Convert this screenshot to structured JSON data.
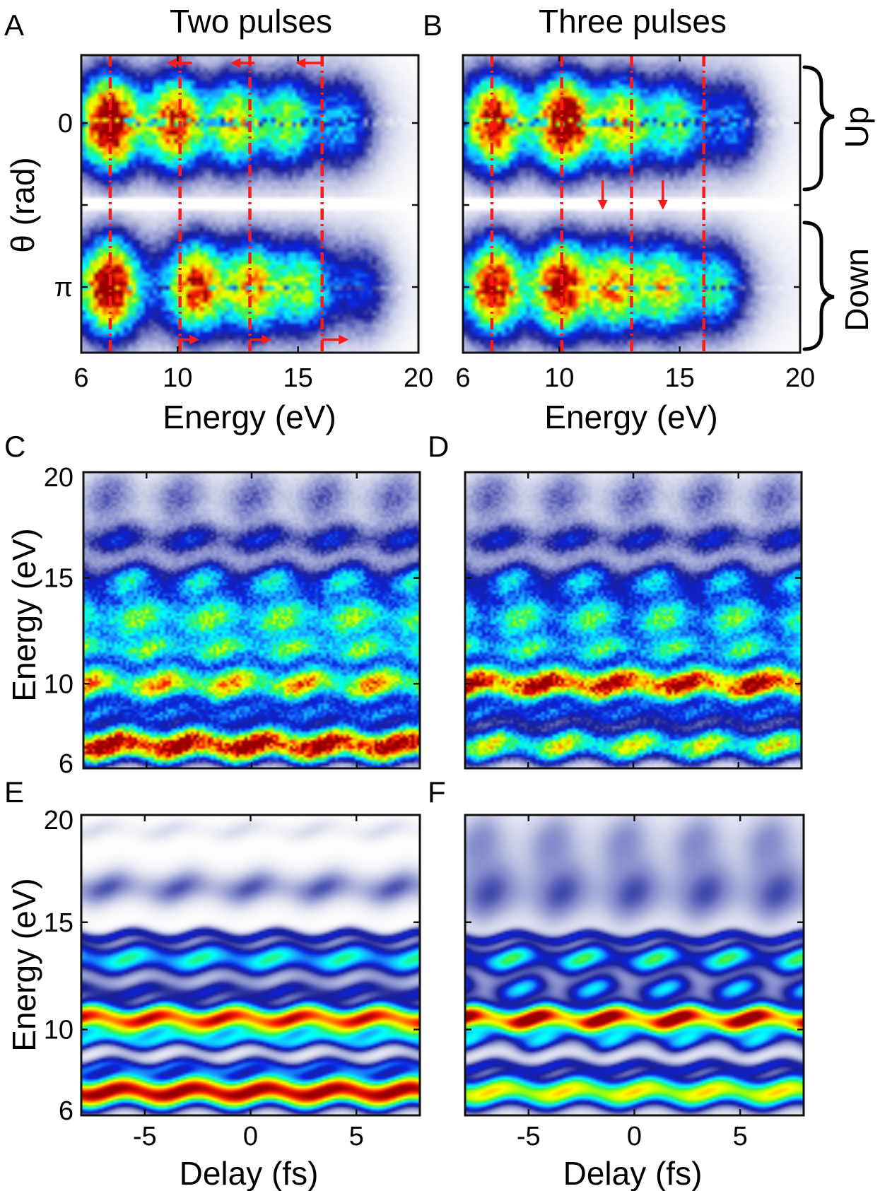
{
  "figure": {
    "colors": {
      "colormap": [
        "#ffffff",
        "#c8cce6",
        "#7c85c9",
        "#1a1f96",
        "#0a23e0",
        "#1aa0ff",
        "#00ffff",
        "#2ff05a",
        "#b4ff00",
        "#ffff00",
        "#ff9a00",
        "#ff1a00",
        "#9a0000"
      ],
      "marker": "#ff1a1a"
    }
  },
  "chart_data": [
    {
      "id": "A",
      "letter": "A",
      "type": "heatmap",
      "title": "Two pulses",
      "xlabel": "Energy (eV)",
      "ylabel": "θ (rad)",
      "xlim": [
        6,
        20
      ],
      "x_ticks": [
        "6",
        "10",
        "15",
        "20"
      ],
      "x_tick_values": [
        6,
        10,
        15,
        20
      ],
      "y_ticks": [
        "0",
        "π"
      ],
      "y_tick_values": [
        0,
        3.14159
      ],
      "ylim": [
        4.4,
        -1.3
      ],
      "dashed_lines_eV": [
        7.2,
        10.1,
        13.0,
        16.0
      ],
      "arrows": [
        {
          "y": -1.15,
          "from_eV": 10.6,
          "to_eV": 9.55
        },
        {
          "y": -1.15,
          "from_eV": 13.2,
          "to_eV": 12.2
        },
        {
          "y": -1.15,
          "from_eV": 16.0,
          "to_eV": 14.9
        },
        {
          "y": 4.15,
          "from_eV": 10.0,
          "to_eV": 10.9
        },
        {
          "y": 4.15,
          "from_eV": 13.0,
          "to_eV": 13.9
        },
        {
          "y": 4.15,
          "from_eV": 16.0,
          "to_eV": 17.1
        }
      ],
      "blobs_up": [
        {
          "eV": 7.2,
          "peak": 1.0
        },
        {
          "eV": 9.9,
          "peak": 0.78
        },
        {
          "eV": 12.4,
          "peak": 0.55
        },
        {
          "eV": 14.6,
          "peak": 0.45
        },
        {
          "eV": 17.0,
          "peak": 0.28
        }
      ],
      "blobs_down": [
        {
          "eV": 7.2,
          "peak": 0.95
        },
        {
          "eV": 10.8,
          "peak": 0.78
        },
        {
          "eV": 13.1,
          "peak": 0.62
        },
        {
          "eV": 15.2,
          "peak": 0.45
        },
        {
          "eV": 17.8,
          "peak": 0.22
        }
      ]
    },
    {
      "id": "B",
      "letter": "B",
      "type": "heatmap",
      "title": "Three pulses",
      "xlabel": "Energy (eV)",
      "xlim": [
        6,
        20
      ],
      "x_ticks": [
        "6",
        "10",
        "15",
        "20"
      ],
      "x_tick_values": [
        6,
        10,
        15,
        20
      ],
      "ylim": [
        4.4,
        -1.3
      ],
      "dashed_lines_eV": [
        7.2,
        10.1,
        13.0,
        16.0
      ],
      "down_arrows_eV": [
        11.8,
        14.3
      ],
      "brace_labels": [
        "Up",
        "Down"
      ],
      "blobs_up": [
        {
          "eV": 7.3,
          "peak": 0.85
        },
        {
          "eV": 10.2,
          "peak": 1.0
        },
        {
          "eV": 12.6,
          "peak": 0.58
        },
        {
          "eV": 14.8,
          "peak": 0.42
        },
        {
          "eV": 17.3,
          "peak": 0.25
        }
      ],
      "blobs_down": [
        {
          "eV": 7.3,
          "peak": 0.85
        },
        {
          "eV": 10.1,
          "peak": 0.88
        },
        {
          "eV": 12.3,
          "peak": 0.62
        },
        {
          "eV": 14.4,
          "peak": 0.55
        },
        {
          "eV": 16.6,
          "peak": 0.35
        }
      ]
    },
    {
      "id": "C",
      "letter": "C",
      "type": "heatmap",
      "ylabel": "Energy (eV)",
      "xlim": [
        -8,
        8
      ],
      "ylim": [
        6,
        20
      ],
      "y_ticks": [
        "6",
        "10",
        "15",
        "20"
      ],
      "y_tick_values": [
        6,
        10,
        15,
        20
      ],
      "x_tick_values": [
        -5,
        0,
        5
      ],
      "bands": [
        {
          "eV": 7.1,
          "amp": 1.0,
          "width": 0.55,
          "mod": 0.12,
          "period": 3.4
        },
        {
          "eV": 8.6,
          "amp": 0.3,
          "width": 0.35,
          "mod": 0.25,
          "period": 3.4
        },
        {
          "eV": 10.0,
          "amp": 0.72,
          "width": 0.6,
          "mod": 0.22,
          "period": 3.4
        },
        {
          "eV": 11.6,
          "amp": 0.45,
          "width": 0.45,
          "mod": 0.3,
          "period": 3.4
        },
        {
          "eV": 13.1,
          "amp": 0.55,
          "width": 0.75,
          "mod": 0.2,
          "period": 3.4
        },
        {
          "eV": 14.9,
          "amp": 0.38,
          "width": 0.6,
          "mod": 0.35,
          "period": 3.4
        },
        {
          "eV": 16.8,
          "amp": 0.25,
          "width": 0.5,
          "mod": 0.3,
          "period": 3.4
        },
        {
          "eV": 18.8,
          "amp": 0.14,
          "width": 1.0,
          "mod": 0.4,
          "period": 3.4
        }
      ]
    },
    {
      "id": "D",
      "letter": "D",
      "type": "heatmap",
      "xlim": [
        -8,
        8
      ],
      "ylim": [
        6,
        20
      ],
      "x_tick_values": [
        -5,
        0,
        5
      ],
      "bands": [
        {
          "eV": 7.1,
          "amp": 0.62,
          "width": 0.55,
          "mod": 0.22,
          "period": 3.4
        },
        {
          "eV": 8.6,
          "amp": 0.3,
          "width": 0.35,
          "mod": 0.25,
          "period": 3.4
        },
        {
          "eV": 10.0,
          "amp": 0.95,
          "width": 0.55,
          "mod": 0.14,
          "period": 3.4
        },
        {
          "eV": 11.6,
          "amp": 0.42,
          "width": 0.45,
          "mod": 0.3,
          "period": 3.4
        },
        {
          "eV": 13.1,
          "amp": 0.5,
          "width": 0.75,
          "mod": 0.25,
          "period": 3.4
        },
        {
          "eV": 14.9,
          "amp": 0.35,
          "width": 0.6,
          "mod": 0.35,
          "period": 3.4
        },
        {
          "eV": 16.8,
          "amp": 0.24,
          "width": 0.5,
          "mod": 0.3,
          "period": 3.4
        },
        {
          "eV": 18.8,
          "amp": 0.14,
          "width": 1.0,
          "mod": 0.4,
          "period": 3.4
        }
      ]
    },
    {
      "id": "E",
      "letter": "E",
      "type": "heatmap",
      "xlabel": "Delay (fs)",
      "ylabel": "Energy (eV)",
      "xlim": [
        -8,
        8
      ],
      "ylim": [
        6,
        20
      ],
      "x_ticks": [
        "-5",
        "0",
        "5"
      ],
      "x_tick_values": [
        -5,
        0,
        5
      ],
      "y_ticks": [
        "6",
        "10",
        "15",
        "20"
      ],
      "y_tick_values": [
        6,
        10,
        15,
        20
      ],
      "bands": [
        {
          "eV": 7.1,
          "amp": 1.0,
          "width": 0.5,
          "mod": 0.04,
          "period": 3.4
        },
        {
          "eV": 8.3,
          "amp": 0.3,
          "width": 0.25,
          "mod": 0.2,
          "period": 3.4
        },
        {
          "eV": 9.5,
          "amp": 0.38,
          "width": 0.3,
          "mod": 0.2,
          "period": 3.4
        },
        {
          "eV": 10.5,
          "amp": 0.92,
          "width": 0.45,
          "mod": 0.08,
          "period": 3.4
        },
        {
          "eV": 11.8,
          "amp": 0.25,
          "width": 0.3,
          "mod": 0.25,
          "period": 3.4
        },
        {
          "eV": 13.3,
          "amp": 0.48,
          "width": 0.5,
          "mod": 0.18,
          "period": 3.4
        },
        {
          "eV": 14.4,
          "amp": 0.25,
          "width": 0.18,
          "mod": 0.2,
          "period": 3.4
        },
        {
          "eV": 16.6,
          "amp": 0.16,
          "width": 0.55,
          "mod": 0.3,
          "period": 3.4
        },
        {
          "eV": 19.3,
          "amp": 0.04,
          "width": 0.3,
          "mod": 0.5,
          "period": 3.4
        }
      ]
    },
    {
      "id": "F",
      "letter": "F",
      "type": "heatmap",
      "xlabel": "Delay (fs)",
      "xlim": [
        -8,
        8
      ],
      "ylim": [
        6,
        20
      ],
      "x_ticks": [
        "-5",
        "0",
        "5"
      ],
      "x_tick_values": [
        -5,
        0,
        5
      ],
      "bands": [
        {
          "eV": 7.1,
          "amp": 0.72,
          "width": 0.5,
          "mod": 0.1,
          "period": 3.4
        },
        {
          "eV": 8.3,
          "amp": 0.25,
          "width": 0.22,
          "mod": 0.25,
          "period": 3.4
        },
        {
          "eV": 9.5,
          "amp": 0.3,
          "width": 0.35,
          "mod": 0.6,
          "period": 3.4
        },
        {
          "eV": 10.5,
          "amp": 0.95,
          "width": 0.42,
          "mod": 0.18,
          "period": 3.4
        },
        {
          "eV": 11.9,
          "amp": 0.32,
          "width": 0.4,
          "mod": 0.55,
          "period": 3.4
        },
        {
          "eV": 13.3,
          "amp": 0.45,
          "width": 0.45,
          "mod": 0.35,
          "period": 3.4
        },
        {
          "eV": 14.3,
          "amp": 0.25,
          "width": 0.18,
          "mod": 0.2,
          "period": 3.4
        },
        {
          "eV": 16.3,
          "amp": 0.16,
          "width": 1.0,
          "mod": 0.3,
          "period": 3.4
        },
        {
          "eV": 18.8,
          "amp": 0.11,
          "width": 1.1,
          "mod": 0.4,
          "period": 3.4
        }
      ]
    }
  ]
}
